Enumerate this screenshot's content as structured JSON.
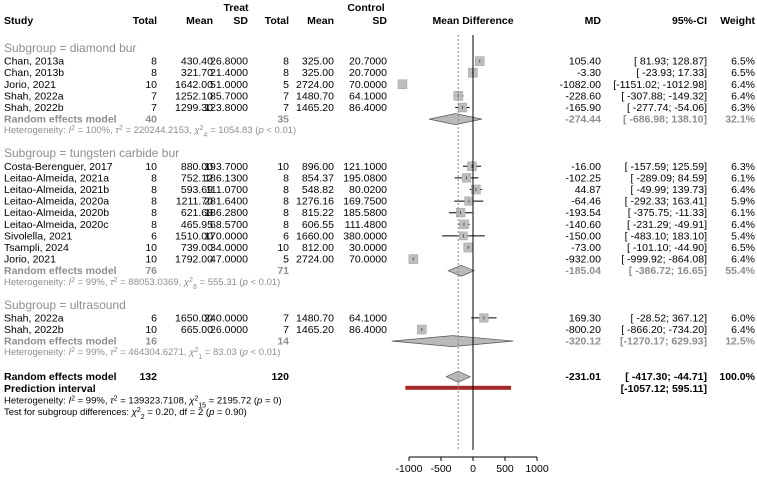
{
  "chart_data": {
    "type": "forest",
    "headers": {
      "study": "Study",
      "treat": "Treat",
      "control": "Control",
      "total": "Total",
      "mean": "Mean",
      "sd": "SD",
      "effect": "Mean Difference",
      "md": "MD",
      "ci": "95%-CI",
      "weight": "Weight"
    },
    "xlim": [
      -1000,
      1000
    ],
    "xticks": [
      -1000,
      -500,
      0,
      500,
      1000
    ],
    "xtick_labels": [
      "-1000",
      "-500",
      "0",
      "500",
      "1000"
    ],
    "subgroups": [
      {
        "title": "Subgroup = diamond bur",
        "studies": [
          {
            "study": "Chan, 2013a",
            "n1": "8",
            "m1": "430.40",
            "sd1": "26.8000",
            "n2": "8",
            "m2": "325.00",
            "sd2": "20.7000",
            "md": 105.4,
            "lo": 81.93,
            "hi": 128.87,
            "w": 6.5,
            "md_s": "105.40",
            "ci_s": "[   81.93;   128.87]",
            "w_s": "6.5%"
          },
          {
            "study": "Chan, 2013b",
            "n1": "8",
            "m1": "321.70",
            "sd1": "21.4000",
            "n2": "8",
            "m2": "325.00",
            "sd2": "20.7000",
            "md": -3.3,
            "lo": -23.93,
            "hi": 17.33,
            "w": 6.5,
            "md_s": "-3.30",
            "ci_s": "[  -23.93;    17.33]",
            "w_s": "6.5%"
          },
          {
            "study": "Jorio, 2021",
            "n1": "10",
            "m1": "1642.00",
            "sd1": "51.0000",
            "n2": "5",
            "m2": "2724.00",
            "sd2": "70.0000",
            "md": -1082.0,
            "lo": -1151.02,
            "hi": -1012.98,
            "w": 6.4,
            "md_s": "-1082.00",
            "ci_s": "[-1151.02; -1012.98]",
            "w_s": "6.4%"
          },
          {
            "study": "Shah, 2022a",
            "n1": "7",
            "m1": "1252.10",
            "sd1": "85.7000",
            "n2": "7",
            "m2": "1480.70",
            "sd2": "64.1000",
            "md": -228.6,
            "lo": -307.88,
            "hi": -149.32,
            "w": 6.4,
            "md_s": "-228.60",
            "ci_s": "[ -307.88;  -149.32]",
            "w_s": "6.4%"
          },
          {
            "study": "Shah, 2022b",
            "n1": "7",
            "m1": "1299.30",
            "sd1": "123.8000",
            "n2": "7",
            "m2": "1465.20",
            "sd2": "86.4000",
            "md": -165.9,
            "lo": -277.74,
            "hi": -54.06,
            "w": 6.3,
            "md_s": "-165.90",
            "ci_s": "[ -277.74;   -54.06]",
            "w_s": "6.3%"
          }
        ],
        "random": {
          "label": "Random effects model",
          "n1": "40",
          "n2": "35",
          "md": -274.44,
          "lo": -686.98,
          "hi": 138.1,
          "md_s": "-274.44",
          "ci_s": "[ -686.98;   138.10]",
          "w_s": "32.1%"
        },
        "heterogeneity": {
          "prefix": "Heterogeneity: ",
          "i2": "I",
          "i2_val": " = 100%, ",
          "tau": "τ",
          "tau_val": " = 220244.2153, ",
          "chi": "χ",
          "df": "4",
          "chi_val": " = 1054.83 (",
          "p": "p",
          "p_val": " < 0.01)"
        }
      },
      {
        "title": "Subgroup = tungsten carbide bur",
        "studies": [
          {
            "study": "Costa-Berenguer, 2017",
            "n1": "10",
            "m1": "880.00",
            "sd1": "193.7000",
            "n2": "10",
            "m2": "896.00",
            "sd2": "121.1000",
            "md": -16.0,
            "lo": -157.59,
            "hi": 125.59,
            "w": 6.3,
            "md_s": "-16.00",
            "ci_s": "[ -157.59;   125.59]",
            "w_s": "6.3%"
          },
          {
            "study": "Leitao-Almeida, 2021a",
            "n1": "8",
            "m1": "752.12",
            "sd1": "186.1300",
            "n2": "8",
            "m2": "854.37",
            "sd2": "195.0800",
            "md": -102.25,
            "lo": -289.09,
            "hi": 84.59,
            "w": 6.1,
            "md_s": "-102.25",
            "ci_s": "[ -289.09;    84.59]",
            "w_s": "6.1%"
          },
          {
            "study": "Leitao-Almeida, 2021b",
            "n1": "8",
            "m1": "593.69",
            "sd1": "111.0700",
            "n2": "8",
            "m2": "548.82",
            "sd2": "80.0200",
            "md": 44.87,
            "lo": -49.99,
            "hi": 139.73,
            "w": 6.4,
            "md_s": "44.87",
            "ci_s": "[  -49.99;   139.73]",
            "w_s": "6.4%"
          },
          {
            "study": "Leitao-Almeida, 2020a",
            "n1": "8",
            "m1": "1211.70",
            "sd1": "281.6400",
            "n2": "8",
            "m2": "1276.16",
            "sd2": "169.7500",
            "md": -64.46,
            "lo": -292.33,
            "hi": 163.41,
            "w": 5.9,
            "md_s": "-64.46",
            "ci_s": "[ -292.33;   163.41]",
            "w_s": "5.9%"
          },
          {
            "study": "Leitao-Almeida, 2020b",
            "n1": "8",
            "m1": "621.68",
            "sd1": "186.2800",
            "n2": "8",
            "m2": "815.22",
            "sd2": "185.5800",
            "md": -193.54,
            "lo": -375.75,
            "hi": -11.33,
            "w": 6.1,
            "md_s": "-193.54",
            "ci_s": "[ -375.75;   -11.33]",
            "w_s": "6.1%"
          },
          {
            "study": "Leitao-Almeida, 2020c",
            "n1": "8",
            "m1": "465.95",
            "sd1": "68.5700",
            "n2": "8",
            "m2": "606.55",
            "sd2": "111.4800",
            "md": -140.6,
            "lo": -231.29,
            "hi": -49.91,
            "w": 6.4,
            "md_s": "-140.60",
            "ci_s": "[ -231.29;   -49.91]",
            "w_s": "6.4%"
          },
          {
            "study": "Sivolella, 2021",
            "n1": "6",
            "m1": "1510.00",
            "sd1": "170.0000",
            "n2": "6",
            "m2": "1660.00",
            "sd2": "380.0000",
            "md": -150.0,
            "lo": -483.1,
            "hi": 183.1,
            "w": 5.4,
            "md_s": "-150.00",
            "ci_s": "[ -483.10;   183.10]",
            "w_s": "5.4%"
          },
          {
            "study": "Tsampli, 2024",
            "n1": "10",
            "m1": "739.00",
            "sd1": "34.0000",
            "n2": "10",
            "m2": "812.00",
            "sd2": "30.0000",
            "md": -73.0,
            "lo": -101.1,
            "hi": -44.9,
            "w": 6.5,
            "md_s": "-73.00",
            "ci_s": "[ -101.10;   -44.90]",
            "w_s": "6.5%"
          },
          {
            "study": "Jorio, 2021",
            "n1": "10",
            "m1": "1792.00",
            "sd1": "47.0000",
            "n2": "5",
            "m2": "2724.00",
            "sd2": "70.0000",
            "md": -932.0,
            "lo": -999.92,
            "hi": -864.08,
            "w": 6.4,
            "md_s": "-932.00",
            "ci_s": "[ -999.92;  -864.08]",
            "w_s": "6.4%"
          }
        ],
        "random": {
          "label": "Random effects model",
          "n1": "76",
          "n2": "71",
          "md": -185.04,
          "lo": -386.72,
          "hi": 16.65,
          "md_s": "-185.04",
          "ci_s": "[ -386.72;    16.65]",
          "w_s": "55.4%"
        },
        "heterogeneity": {
          "prefix": "Heterogeneity: ",
          "i2": "I",
          "i2_val": " = 99%, ",
          "tau": "τ",
          "tau_val": " = 88053.0369, ",
          "chi": "χ",
          "df": "8",
          "chi_val": " = 555.31 (",
          "p": "p",
          "p_val": " < 0.01)"
        }
      },
      {
        "title": "Subgroup = ultrasound",
        "studies": [
          {
            "study": "Shah, 2022a",
            "n1": "6",
            "m1": "1650.00",
            "sd1": "240.0000",
            "n2": "7",
            "m2": "1480.70",
            "sd2": "64.1000",
            "md": 169.3,
            "lo": -28.52,
            "hi": 367.12,
            "w": 6.0,
            "md_s": "169.30",
            "ci_s": "[  -28.52;   367.12]",
            "w_s": "6.0%"
          },
          {
            "study": "Shah, 2022b",
            "n1": "10",
            "m1": "665.00",
            "sd1": "26.0000",
            "n2": "7",
            "m2": "1465.20",
            "sd2": "86.4000",
            "md": -800.2,
            "lo": -866.2,
            "hi": -734.2,
            "w": 6.4,
            "md_s": "-800.20",
            "ci_s": "[ -866.20;  -734.20]",
            "w_s": "6.4%"
          }
        ],
        "random": {
          "label": "Random effects model",
          "n1": "16",
          "n2": "14",
          "md": -320.12,
          "lo": -1270.17,
          "hi": 629.93,
          "md_s": "-320.12",
          "ci_s": "[-1270.17;   629.93]",
          "w_s": "12.5%"
        },
        "heterogeneity": {
          "prefix": "Heterogeneity: ",
          "i2": "I",
          "i2_val": " = 99%, ",
          "tau": "τ",
          "tau_val": " = 464304.6271, ",
          "chi": "χ",
          "df": "1",
          "chi_val": " = 83.03 (",
          "p": "p",
          "p_val": " < 0.01)"
        }
      }
    ],
    "overall": {
      "label": "Random effects model",
      "n1": "132",
      "n2": "120",
      "md": -231.01,
      "lo": -417.3,
      "hi": -44.71,
      "md_s": "-231.01",
      "ci_s": "[ -417.30;   -44.71]",
      "w_s": "100.0%"
    },
    "prediction": {
      "label": "Prediction interval",
      "lo": -1057.12,
      "hi": 595.11,
      "ci_s": "[-1057.12;   595.11]"
    },
    "overall_heterogeneity": {
      "prefix": "Heterogeneity: ",
      "i2": "I",
      "i2_val": " = 99%, ",
      "tau": "τ",
      "tau_val": " = 139323.7108, ",
      "chi": "χ",
      "df": "15",
      "chi_val": " = 2195.72 (",
      "p": "p",
      "p_val": " = 0)"
    },
    "subgroup_test": {
      "prefix": "Test for subgroup differences: ",
      "chi": "χ",
      "df": "2",
      "chi_val": " = 0.20, df = 2 (",
      "p": "p",
      "p_val": " = 0.90)"
    },
    "colors": {
      "square": "#bdbdbd",
      "diamond": "#b9b9b9",
      "prediction": "#a52a2a",
      "gray_text": "#8e8e8e",
      "line": "#000000"
    }
  }
}
